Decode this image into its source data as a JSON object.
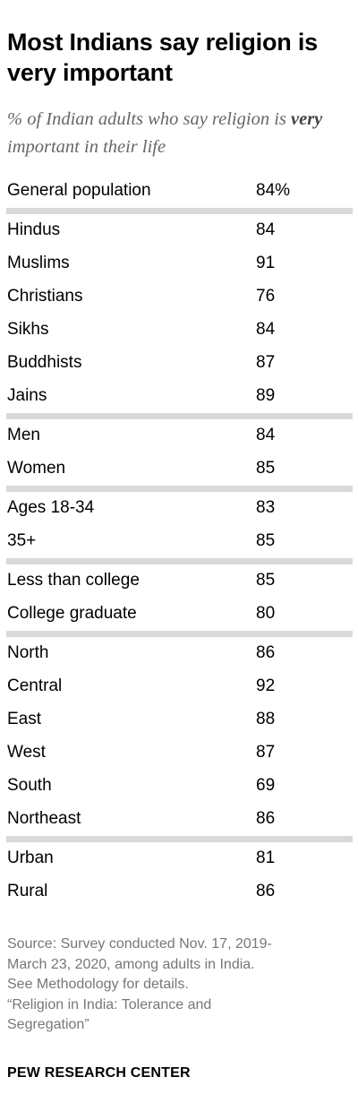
{
  "title": "Most Indians say religion is very important",
  "subtitle": {
    "before": "% of Indian adults who say religion is ",
    "emphasis": "very",
    "after": " important in their life"
  },
  "chart_data": {
    "type": "table",
    "title": "Most Indians say religion is very important",
    "unit": "%",
    "groups": [
      [
        {
          "label": "General population",
          "value": 84,
          "display": "84%"
        }
      ],
      [
        {
          "label": "Hindus",
          "value": 84,
          "display": "84"
        },
        {
          "label": "Muslims",
          "value": 91,
          "display": "91"
        },
        {
          "label": "Christians",
          "value": 76,
          "display": "76"
        },
        {
          "label": "Sikhs",
          "value": 84,
          "display": "84"
        },
        {
          "label": "Buddhists",
          "value": 87,
          "display": "87"
        },
        {
          "label": "Jains",
          "value": 89,
          "display": "89"
        }
      ],
      [
        {
          "label": "Men",
          "value": 84,
          "display": "84"
        },
        {
          "label": "Women",
          "value": 85,
          "display": "85"
        }
      ],
      [
        {
          "label": "Ages 18-34",
          "value": 83,
          "display": "83"
        },
        {
          "label": "35+",
          "value": 85,
          "display": "85"
        }
      ],
      [
        {
          "label": "Less than college",
          "value": 85,
          "display": "85"
        },
        {
          "label": "College graduate",
          "value": 80,
          "display": "80"
        }
      ],
      [
        {
          "label": "North",
          "value": 86,
          "display": "86"
        },
        {
          "label": "Central",
          "value": 92,
          "display": "92"
        },
        {
          "label": "East",
          "value": 88,
          "display": "88"
        },
        {
          "label": "West",
          "value": 87,
          "display": "87"
        },
        {
          "label": "South",
          "value": 69,
          "display": "69"
        },
        {
          "label": "Northeast",
          "value": 86,
          "display": "86"
        }
      ],
      [
        {
          "label": "Urban",
          "value": 81,
          "display": "81"
        },
        {
          "label": "Rural",
          "value": 86,
          "display": "86"
        }
      ]
    ]
  },
  "source_lines": [
    "Source: Survey conducted Nov. 17, 2019-",
    "March 23, 2020, among adults in India.",
    "See Methodology for details.",
    "“Religion in India: Tolerance and",
    "Segregation”"
  ],
  "logo": "PEW RESEARCH CENTER"
}
